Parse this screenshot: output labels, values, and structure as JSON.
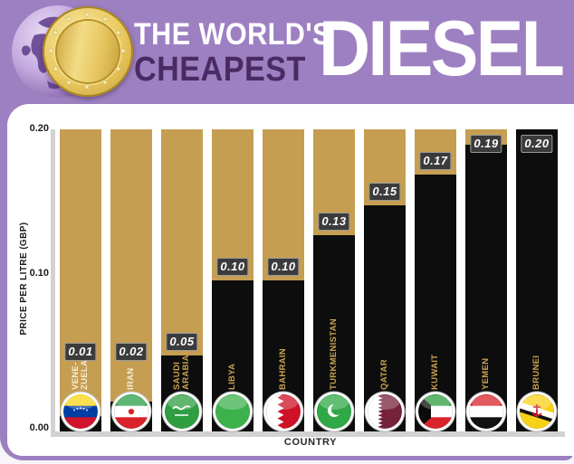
{
  "header": {
    "title_line1": "THE WORLD'S",
    "title_line2": "CHEAPEST",
    "title_main": "DIESEL"
  },
  "colors": {
    "purple": "#9d80c1",
    "purple-dark": "#4b2a63",
    "gold": "#c59e52",
    "bar-black": "#0d0d0d",
    "badge-bg": "#3b3b3b",
    "label-gold": "#c9a250",
    "label-cream": "#f6ecd2",
    "axis-grey": "#d2d2d2"
  },
  "chart_data": {
    "type": "bar",
    "title": "The World's Cheapest Diesel",
    "xlabel": "COUNTRY",
    "ylabel": "PRICE PER LITRE (GBP)",
    "ylim": [
      0,
      0.2
    ],
    "yticks": [
      "0.20",
      "0.10",
      "0.00"
    ],
    "grid": false,
    "legend": false,
    "categories": [
      "VENEZUELA",
      "IRAN",
      "SAUDI ARABIA",
      "LIBYA",
      "BAHRAIN",
      "TURKMENISTAN",
      "QATAR",
      "KUWAIT",
      "YEMEN",
      "BRUNEI"
    ],
    "values": [
      0.01,
      0.02,
      0.05,
      0.1,
      0.1,
      0.13,
      0.15,
      0.17,
      0.19,
      0.2
    ],
    "value_labels": [
      "0.01",
      "0.02",
      "0.05",
      "0.10",
      "0.10",
      "0.13",
      "0.15",
      "0.17",
      "0.19",
      "0.20"
    ],
    "countries": [
      {
        "id": "venezuela",
        "display_name": "VENE-\nZUELA",
        "flag": {
          "type": "h",
          "colors": [
            "#f9d616",
            "#003da5",
            "#cf142b"
          ],
          "dots": true
        }
      },
      {
        "id": "iran",
        "display_name": "IRAN",
        "flag": {
          "type": "h",
          "colors": [
            "#2a9f47",
            "#ffffff",
            "#d8232a"
          ],
          "emblem": "#d8232a"
        }
      },
      {
        "id": "saudi-arabia",
        "display_name": "SAUDI\nARABIA",
        "flag": {
          "type": "saudi",
          "colors": [
            "#2e9e41",
            "#ffffff"
          ]
        }
      },
      {
        "id": "libya",
        "display_name": "LIBYA",
        "flag": {
          "type": "solid",
          "colors": [
            "#3db24c"
          ]
        }
      },
      {
        "id": "bahrain",
        "display_name": "BAHRAIN",
        "flag": {
          "type": "serrated",
          "colors": [
            "#ffffff",
            "#ce1126"
          ],
          "split": 16,
          "teeth": 5,
          "amp": 3.5
        }
      },
      {
        "id": "turkmenistan",
        "display_name": "TURKMENISTAN",
        "flag": {
          "type": "crescent",
          "colors": [
            "#2fa846",
            "#ffffff"
          ]
        }
      },
      {
        "id": "qatar",
        "display_name": "QATAR",
        "flag": {
          "type": "serrated",
          "colors": [
            "#ffffff",
            "#75223a"
          ],
          "split": 14,
          "teeth": 9,
          "amp": 2.5
        }
      },
      {
        "id": "kuwait",
        "display_name": "KUWAIT",
        "flag": {
          "type": "kuwait",
          "colors": [
            "#2e9e41",
            "#ffffff",
            "#d8232a",
            "#0a0a0a"
          ]
        }
      },
      {
        "id": "yemen",
        "display_name": "YEMEN",
        "flag": {
          "type": "h",
          "colors": [
            "#d8232a",
            "#ffffff",
            "#111111"
          ]
        }
      },
      {
        "id": "brunei",
        "display_name": "BRUNEI",
        "flag": {
          "type": "brunei",
          "colors": [
            "#f7d117",
            "#ffffff",
            "#111111",
            "#cf142b"
          ]
        }
      }
    ]
  }
}
